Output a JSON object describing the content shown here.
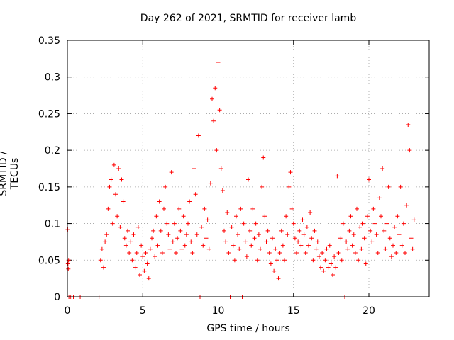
{
  "chart_data": {
    "type": "scatter",
    "title": "Day 262 of 2021, SRMTID for receiver lamb",
    "xlabel": "GPS time / hours",
    "ylabel": "SRMTID / TECUs",
    "xlim": [
      0,
      24
    ],
    "ylim": [
      0,
      0.35
    ],
    "xticks": [
      0,
      5,
      10,
      15,
      20
    ],
    "xtick_labels": [
      "0",
      "5",
      "10",
      "15",
      "20"
    ],
    "yticks": [
      0,
      0.05,
      0.1,
      0.15,
      0.2,
      0.25,
      0.3,
      0.35
    ],
    "ytick_labels": [
      "0",
      "0.05",
      "0.1",
      "0.15",
      "0.2",
      "0.25",
      "0.3",
      "0.35"
    ],
    "grid": true,
    "marker": "+",
    "color": "#ff0000",
    "series": [
      {
        "name": "SRMTID",
        "points": [
          [
            0.02,
            0.092
          ],
          [
            0.04,
            0.045
          ],
          [
            0.06,
            0.038
          ],
          [
            0.08,
            0.05
          ],
          [
            0.1,
            0.0
          ],
          [
            0.2,
            0.0
          ],
          [
            0.3,
            0.0
          ],
          [
            0.4,
            0.0
          ],
          [
            0.85,
            0.0
          ],
          [
            2.1,
            0.0
          ],
          [
            2.2,
            0.05
          ],
          [
            2.3,
            0.065
          ],
          [
            2.4,
            0.04
          ],
          [
            2.5,
            0.075
          ],
          [
            2.6,
            0.085
          ],
          [
            2.7,
            0.12
          ],
          [
            2.8,
            0.15
          ],
          [
            2.9,
            0.16
          ],
          [
            3.0,
            0.1
          ],
          [
            3.1,
            0.18
          ],
          [
            3.2,
            0.14
          ],
          [
            3.3,
            0.11
          ],
          [
            3.4,
            0.175
          ],
          [
            3.5,
            0.095
          ],
          [
            3.6,
            0.16
          ],
          [
            3.7,
            0.13
          ],
          [
            3.8,
            0.08
          ],
          [
            3.9,
            0.07
          ],
          [
            4.0,
            0.09
          ],
          [
            4.1,
            0.06
          ],
          [
            4.2,
            0.075
          ],
          [
            4.3,
            0.05
          ],
          [
            4.4,
            0.085
          ],
          [
            4.5,
            0.04
          ],
          [
            4.6,
            0.06
          ],
          [
            4.7,
            0.095
          ],
          [
            4.8,
            0.03
          ],
          [
            4.9,
            0.07
          ],
          [
            5.0,
            0.055
          ],
          [
            5.1,
            0.035
          ],
          [
            5.2,
            0.06
          ],
          [
            5.3,
            0.045
          ],
          [
            5.4,
            0.025
          ],
          [
            5.5,
            0.065
          ],
          [
            5.6,
            0.08
          ],
          [
            5.7,
            0.09
          ],
          [
            5.8,
            0.055
          ],
          [
            5.9,
            0.11
          ],
          [
            6.0,
            0.07
          ],
          [
            6.1,
            0.13
          ],
          [
            6.2,
            0.09
          ],
          [
            6.3,
            0.06
          ],
          [
            6.4,
            0.12
          ],
          [
            6.5,
            0.15
          ],
          [
            6.6,
            0.1
          ],
          [
            6.7,
            0.085
          ],
          [
            6.8,
            0.065
          ],
          [
            6.9,
            0.17
          ],
          [
            7.0,
            0.075
          ],
          [
            7.1,
            0.1
          ],
          [
            7.2,
            0.06
          ],
          [
            7.3,
            0.08
          ],
          [
            7.4,
            0.12
          ],
          [
            7.5,
            0.09
          ],
          [
            7.6,
            0.065
          ],
          [
            7.7,
            0.11
          ],
          [
            7.8,
            0.07
          ],
          [
            7.9,
            0.085
          ],
          [
            8.0,
            0.1
          ],
          [
            8.1,
            0.13
          ],
          [
            8.2,
            0.075
          ],
          [
            8.3,
            0.06
          ],
          [
            8.4,
            0.175
          ],
          [
            8.5,
            0.14
          ],
          [
            8.6,
            0.085
          ],
          [
            8.7,
            0.22
          ],
          [
            8.8,
            0.0
          ],
          [
            8.9,
            0.095
          ],
          [
            9.0,
            0.07
          ],
          [
            9.1,
            0.12
          ],
          [
            9.2,
            0.08
          ],
          [
            9.3,
            0.105
          ],
          [
            9.4,
            0.065
          ],
          [
            9.5,
            0.155
          ],
          [
            9.6,
            0.27
          ],
          [
            9.7,
            0.24
          ],
          [
            9.8,
            0.285
          ],
          [
            9.9,
            0.2
          ],
          [
            10.0,
            0.32
          ],
          [
            10.1,
            0.255
          ],
          [
            10.2,
            0.175
          ],
          [
            10.3,
            0.145
          ],
          [
            10.4,
            0.09
          ],
          [
            10.5,
            0.075
          ],
          [
            10.6,
            0.115
          ],
          [
            10.7,
            0.06
          ],
          [
            10.8,
            0.0
          ],
          [
            10.9,
            0.095
          ],
          [
            11.0,
            0.07
          ],
          [
            11.1,
            0.05
          ],
          [
            11.2,
            0.11
          ],
          [
            11.3,
            0.085
          ],
          [
            11.4,
            0.065
          ],
          [
            11.5,
            0.12
          ],
          [
            11.6,
            0.0
          ],
          [
            11.7,
            0.1
          ],
          [
            11.8,
            0.075
          ],
          [
            11.9,
            0.055
          ],
          [
            12.0,
            0.16
          ],
          [
            12.1,
            0.09
          ],
          [
            12.2,
            0.07
          ],
          [
            12.3,
            0.12
          ],
          [
            12.4,
            0.08
          ],
          [
            12.5,
            0.1
          ],
          [
            12.6,
            0.05
          ],
          [
            12.7,
            0.085
          ],
          [
            12.8,
            0.065
          ],
          [
            12.9,
            0.15
          ],
          [
            13.0,
            0.19
          ],
          [
            13.1,
            0.11
          ],
          [
            13.2,
            0.075
          ],
          [
            13.3,
            0.09
          ],
          [
            13.4,
            0.06
          ],
          [
            13.5,
            0.045
          ],
          [
            13.6,
            0.08
          ],
          [
            13.7,
            0.035
          ],
          [
            13.8,
            0.065
          ],
          [
            13.9,
            0.05
          ],
          [
            14.0,
            0.025
          ],
          [
            14.1,
            0.06
          ],
          [
            14.2,
            0.09
          ],
          [
            14.3,
            0.07
          ],
          [
            14.4,
            0.05
          ],
          [
            14.5,
            0.11
          ],
          [
            14.6,
            0.085
          ],
          [
            14.7,
            0.15
          ],
          [
            14.8,
            0.17
          ],
          [
            14.9,
            0.12
          ],
          [
            15.0,
            0.1
          ],
          [
            15.1,
            0.08
          ],
          [
            15.2,
            0.06
          ],
          [
            15.3,
            0.075
          ],
          [
            15.4,
            0.09
          ],
          [
            15.5,
            0.07
          ],
          [
            15.6,
            0.105
          ],
          [
            15.7,
            0.085
          ],
          [
            15.8,
            0.06
          ],
          [
            15.9,
            0.095
          ],
          [
            16.0,
            0.07
          ],
          [
            16.1,
            0.115
          ],
          [
            16.2,
            0.08
          ],
          [
            16.3,
            0.05
          ],
          [
            16.4,
            0.09
          ],
          [
            16.5,
            0.065
          ],
          [
            16.6,
            0.075
          ],
          [
            16.7,
            0.055
          ],
          [
            16.8,
            0.04
          ],
          [
            16.9,
            0.06
          ],
          [
            17.0,
            0.035
          ],
          [
            17.1,
            0.05
          ],
          [
            17.2,
            0.065
          ],
          [
            17.3,
            0.04
          ],
          [
            17.4,
            0.07
          ],
          [
            17.5,
            0.045
          ],
          [
            17.6,
            0.03
          ],
          [
            17.7,
            0.055
          ],
          [
            17.8,
            0.04
          ],
          [
            17.9,
            0.165
          ],
          [
            18.0,
            0.06
          ],
          [
            18.1,
            0.08
          ],
          [
            18.2,
            0.05
          ],
          [
            18.3,
            0.1
          ],
          [
            18.4,
            0.0
          ],
          [
            18.5,
            0.075
          ],
          [
            18.6,
            0.065
          ],
          [
            18.7,
            0.09
          ],
          [
            18.8,
            0.11
          ],
          [
            18.9,
            0.07
          ],
          [
            19.0,
            0.085
          ],
          [
            19.1,
            0.06
          ],
          [
            19.2,
            0.12
          ],
          [
            19.3,
            0.05
          ],
          [
            19.4,
            0.095
          ],
          [
            19.5,
            0.065
          ],
          [
            19.6,
            0.1
          ],
          [
            19.7,
            0.08
          ],
          [
            19.8,
            0.045
          ],
          [
            19.9,
            0.11
          ],
          [
            20.0,
            0.16
          ],
          [
            20.1,
            0.09
          ],
          [
            20.2,
            0.075
          ],
          [
            20.3,
            0.12
          ],
          [
            20.4,
            0.1
          ],
          [
            20.5,
            0.085
          ],
          [
            20.6,
            0.06
          ],
          [
            20.7,
            0.135
          ],
          [
            20.8,
            0.11
          ],
          [
            20.9,
            0.175
          ],
          [
            21.0,
            0.09
          ],
          [
            21.1,
            0.065
          ],
          [
            21.2,
            0.1
          ],
          [
            21.3,
            0.15
          ],
          [
            21.4,
            0.08
          ],
          [
            21.5,
            0.055
          ],
          [
            21.6,
            0.07
          ],
          [
            21.7,
            0.095
          ],
          [
            21.8,
            0.06
          ],
          [
            21.9,
            0.11
          ],
          [
            22.0,
            0.085
          ],
          [
            22.1,
            0.15
          ],
          [
            22.2,
            0.07
          ],
          [
            22.3,
            0.1
          ],
          [
            22.4,
            0.06
          ],
          [
            22.5,
            0.125
          ],
          [
            22.6,
            0.235
          ],
          [
            22.7,
            0.2
          ],
          [
            22.8,
            0.08
          ],
          [
            22.9,
            0.065
          ],
          [
            23.0,
            0.105
          ]
        ]
      }
    ]
  }
}
